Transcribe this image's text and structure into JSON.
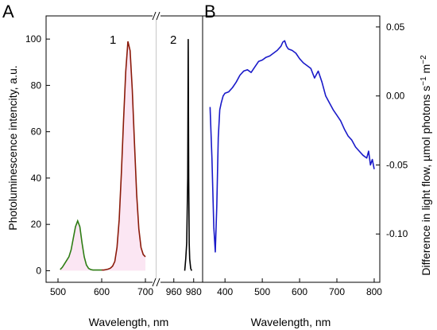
{
  "chart_data": [
    {
      "panel": "A",
      "type": "line",
      "xlabel": "Wavelength, nm",
      "ylabel": "Photoluminescence intencity, a.u.",
      "ylim": [
        -5,
        110
      ],
      "yticks": [
        "0",
        "20",
        "40",
        "60",
        "80",
        "100"
      ],
      "xticks_left": [
        "500",
        "600",
        "700"
      ],
      "xticks_right": [
        "960",
        "980"
      ],
      "xrange_left": [
        480,
        720
      ],
      "xrange_right": [
        945,
        985
      ],
      "axis_break": "//",
      "grid": false,
      "peak_labels": [
        "1",
        "2"
      ],
      "colors": {
        "fill": "#fbe6f3",
        "green": "#2e7d14",
        "red": "#8b1a0a",
        "black": "#000000"
      },
      "series": [
        {
          "label": "1",
          "color_green": "#2e7d14",
          "color_red": "#8b1a0a",
          "x": [
            505,
            510,
            515,
            520,
            525,
            530,
            535,
            540,
            545,
            550,
            555,
            560,
            565,
            570,
            575,
            580,
            585,
            590,
            595,
            600,
            605,
            610,
            615,
            620,
            625,
            630,
            635,
            640,
            645,
            650,
            655,
            660,
            665,
            670,
            675,
            680,
            685,
            690,
            695,
            700
          ],
          "y": [
            0.5,
            1.5,
            3,
            4.5,
            6,
            9,
            14,
            19,
            21.5,
            19,
            12,
            6,
            2.5,
            1,
            0.5,
            0.3,
            0.3,
            0.3,
            0.3,
            0.3,
            0.3,
            0.5,
            0.7,
            1.1,
            2,
            4,
            10,
            22,
            42,
            65,
            86,
            99,
            95,
            78,
            55,
            33,
            18,
            10,
            7,
            6
          ]
        },
        {
          "label": "2",
          "color": "#000000",
          "x": [
            971,
            972,
            973,
            974,
            974.5,
            975,
            975.5,
            976,
            977,
            978
          ],
          "y": [
            0,
            5,
            12,
            40,
            100,
            40,
            12,
            5,
            1,
            0
          ]
        }
      ]
    },
    {
      "panel": "B",
      "type": "line",
      "xlabel": "Wavelength, nm",
      "ylabel": "Difference in light flow, µmol photons s",
      "ylabel_sup1": "−1",
      "ylabel_mid": " m",
      "ylabel_sup2": "−2",
      "xlim": [
        340,
        815
      ],
      "ylim": [
        -0.135,
        0.058
      ],
      "xticks": [
        "400",
        "500",
        "600",
        "700",
        "800"
      ],
      "yticks": [
        "-0.10",
        "-0.05",
        "0.00",
        "0.05"
      ],
      "grid": false,
      "series": [
        {
          "color": "#1a1ac9",
          "x": [
            360,
            365,
            370,
            374,
            378,
            382,
            386,
            390,
            395,
            400,
            410,
            420,
            430,
            440,
            450,
            460,
            470,
            480,
            490,
            500,
            510,
            520,
            530,
            540,
            550,
            555,
            560,
            565,
            570,
            580,
            590,
            600,
            610,
            620,
            630,
            640,
            650,
            660,
            670,
            680,
            690,
            700,
            710,
            720,
            730,
            740,
            750,
            760,
            770,
            780,
            785,
            790,
            795,
            800
          ],
          "y": [
            -0.008,
            -0.045,
            -0.095,
            -0.113,
            -0.08,
            -0.03,
            -0.01,
            -0.005,
            0.0,
            0.002,
            0.003,
            0.006,
            0.01,
            0.015,
            0.018,
            0.019,
            0.017,
            0.021,
            0.025,
            0.026,
            0.028,
            0.029,
            0.031,
            0.033,
            0.036,
            0.039,
            0.04,
            0.036,
            0.034,
            0.033,
            0.031,
            0.027,
            0.024,
            0.022,
            0.02,
            0.013,
            0.018,
            0.01,
            0.0,
            -0.005,
            -0.01,
            -0.014,
            -0.018,
            -0.024,
            -0.029,
            -0.032,
            -0.037,
            -0.04,
            -0.043,
            -0.045,
            -0.04,
            -0.05,
            -0.046,
            -0.053
          ]
        }
      ]
    }
  ]
}
